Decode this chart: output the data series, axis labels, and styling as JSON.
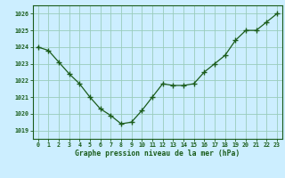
{
  "x": [
    0,
    1,
    2,
    3,
    4,
    5,
    6,
    7,
    8,
    9,
    10,
    11,
    12,
    13,
    14,
    15,
    16,
    17,
    18,
    19,
    20,
    21,
    22,
    23
  ],
  "y": [
    1024.0,
    1023.8,
    1023.1,
    1022.4,
    1021.8,
    1021.0,
    1020.3,
    1019.9,
    1019.4,
    1019.5,
    1020.2,
    1021.0,
    1021.8,
    1021.7,
    1021.7,
    1021.8,
    1022.5,
    1023.0,
    1023.5,
    1024.4,
    1025.0,
    1025.0,
    1025.5,
    1026.0
  ],
  "xlabel": "Graphe pression niveau de la mer (hPa)",
  "ylim": [
    1018.5,
    1026.5
  ],
  "yticks": [
    1019,
    1020,
    1021,
    1022,
    1023,
    1024,
    1025,
    1026
  ],
  "xticks": [
    0,
    1,
    2,
    3,
    4,
    5,
    6,
    7,
    8,
    9,
    10,
    11,
    12,
    13,
    14,
    15,
    16,
    17,
    18,
    19,
    20,
    21,
    22,
    23
  ],
  "line_color": "#1a5c1a",
  "marker": "+",
  "marker_size": 4,
  "bg_color": "#cceeff",
  "grid_color": "#99ccbb",
  "label_color": "#1a5c1a",
  "tick_color": "#1a5c1a"
}
